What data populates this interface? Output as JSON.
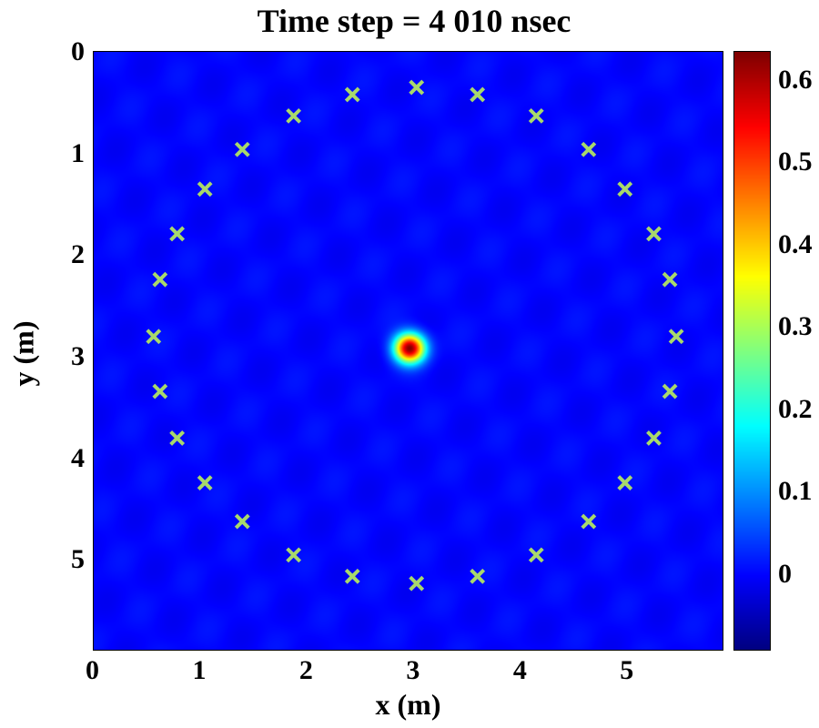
{
  "chart_data": {
    "type": "heatmap",
    "title": "Time step = 4 010 nsec",
    "xlabel": "x (m)",
    "ylabel": "y (m)",
    "xlim": [
      0,
      5.9
    ],
    "ylim": [
      0,
      5.9
    ],
    "y_reversed": true,
    "xticks": [
      "0",
      "1",
      "2",
      "3",
      "4",
      "5"
    ],
    "yticks": [
      "0",
      "1",
      "2",
      "3",
      "4",
      "5"
    ],
    "colorbar": {
      "range": [
        -0.093,
        0.635
      ],
      "ticks": [
        "0",
        "0.1",
        "0.2",
        "0.3",
        "0.4",
        "0.5",
        "0.6"
      ],
      "tick_values": [
        0,
        0.1,
        0.2,
        0.3,
        0.4,
        0.5,
        0.6
      ],
      "colormap": "jet"
    },
    "background_value": 0.0,
    "hotspot": {
      "x": 2.96,
      "y": 2.92,
      "peak": 0.63,
      "sigma": 0.1
    },
    "marker_color": "#a8d86c",
    "markers": [
      [
        3.02,
        0.35
      ],
      [
        3.59,
        0.42
      ],
      [
        4.14,
        0.63
      ],
      [
        4.63,
        0.96
      ],
      [
        4.97,
        1.35
      ],
      [
        5.24,
        1.79
      ],
      [
        5.39,
        2.24
      ],
      [
        5.45,
        2.8
      ],
      [
        5.39,
        3.34
      ],
      [
        5.24,
        3.8
      ],
      [
        4.97,
        4.24
      ],
      [
        4.63,
        4.62
      ],
      [
        4.14,
        4.95
      ],
      [
        3.59,
        5.16
      ],
      [
        3.02,
        5.23
      ],
      [
        2.42,
        5.16
      ],
      [
        1.87,
        4.95
      ],
      [
        1.39,
        4.62
      ],
      [
        1.04,
        4.24
      ],
      [
        0.78,
        3.8
      ],
      [
        0.62,
        3.34
      ],
      [
        0.56,
        2.8
      ],
      [
        0.62,
        2.24
      ],
      [
        0.78,
        1.79
      ],
      [
        1.04,
        1.35
      ],
      [
        1.39,
        0.96
      ],
      [
        1.87,
        0.63
      ],
      [
        2.42,
        0.42
      ]
    ]
  }
}
